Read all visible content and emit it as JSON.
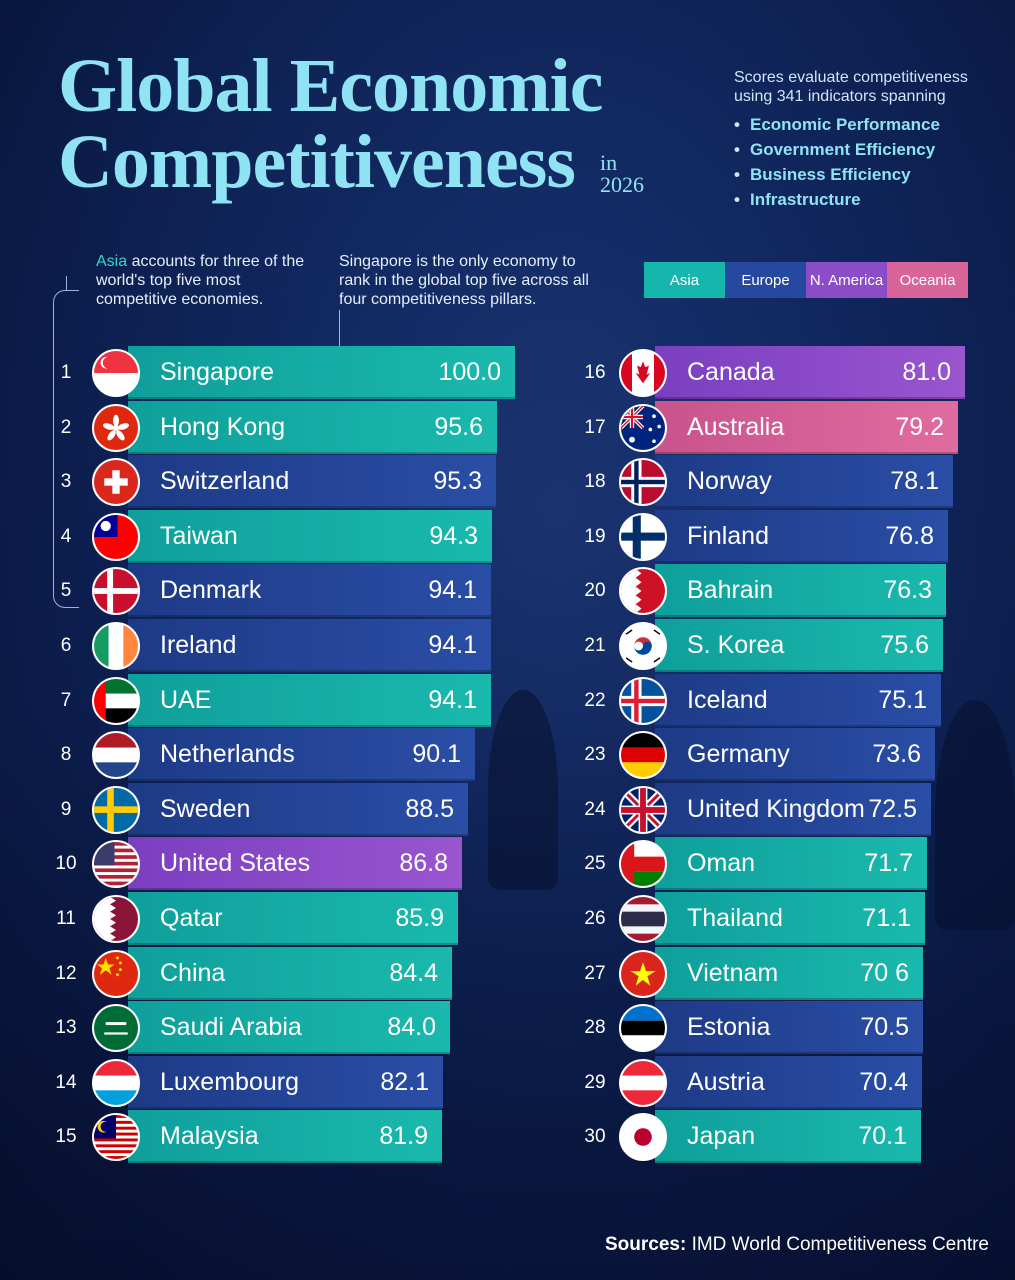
{
  "header": {
    "title_line1": "Global Economic",
    "title_line2": "Competitiveness",
    "title_suffix_1": "in",
    "title_suffix_2": "2026"
  },
  "intro": {
    "text": "Scores evaluate competitiveness using 341 indicators spanning",
    "pillars": [
      "Economic Performance",
      "Government Efficiency",
      "Business Efficiency",
      "Infrastructure"
    ]
  },
  "notes": {
    "asia_highlight": "Asia",
    "asia_rest": " accounts for three of the world's top five most competitive economies.",
    "singapore": "Singapore is the only economy to rank in the global top five across all four competitiveness pillars."
  },
  "legend": [
    {
      "label": "Asia",
      "color": "#17b6ac"
    },
    {
      "label": "Europe",
      "color": "#26489e"
    },
    {
      "label": "N. America",
      "color": "#8b4cc7"
    },
    {
      "label": "Oceania",
      "color": "#d9649a"
    }
  ],
  "chart_data": {
    "type": "bar",
    "orientation": "horizontal",
    "title": "Global Economic Competitiveness in 2026",
    "value_unit": "score",
    "categories": [
      "Singapore",
      "Hong Kong",
      "Switzerland",
      "Taiwan",
      "Denmark",
      "Ireland",
      "UAE",
      "Netherlands",
      "Sweden",
      "United States",
      "Qatar",
      "China",
      "Saudi Arabia",
      "Luxembourg",
      "Malaysia",
      "Canada",
      "Australia",
      "Norway",
      "Finland",
      "Bahrain",
      "S. Korea",
      "Iceland",
      "Germany",
      "United Kingdom",
      "Oman",
      "Thailand",
      "Vietnam",
      "Estonia",
      "Austria",
      "Japan"
    ],
    "ranks": [
      1,
      2,
      3,
      4,
      5,
      6,
      7,
      8,
      9,
      10,
      11,
      12,
      13,
      14,
      15,
      16,
      17,
      18,
      19,
      20,
      21,
      22,
      23,
      24,
      25,
      26,
      27,
      28,
      29,
      30
    ],
    "values": [
      100.0,
      95.6,
      95.3,
      94.3,
      94.1,
      94.1,
      94.1,
      90.1,
      88.5,
      86.8,
      85.9,
      84.4,
      84.0,
      82.1,
      81.9,
      81.0,
      79.2,
      78.1,
      76.8,
      76.3,
      75.6,
      75.1,
      73.6,
      72.5,
      71.7,
      71.1,
      70.6,
      70.5,
      70.4,
      70.1
    ],
    "value_labels": [
      "100.0",
      "95.6",
      "95.3",
      "94.3",
      "94.1",
      "94.1",
      "94.1",
      "90.1",
      "88.5",
      "86.8",
      "85.9",
      "84.4",
      "84.0",
      "82.1",
      "81.9",
      "81.0",
      "79.2",
      "78.1",
      "76.8",
      "76.3",
      "75.6",
      "75.1",
      "73.6",
      "72.5",
      "71.7",
      "71.1",
      "70 6",
      "70.5",
      "70.4",
      "70.1"
    ],
    "regions": [
      "Asia",
      "Asia",
      "Europe",
      "Asia",
      "Europe",
      "Europe",
      "Asia",
      "Europe",
      "Europe",
      "N. America",
      "Asia",
      "Asia",
      "Asia",
      "Europe",
      "Asia",
      "N. America",
      "Oceania",
      "Europe",
      "Europe",
      "Asia",
      "Asia",
      "Europe",
      "Europe",
      "Europe",
      "Asia",
      "Asia",
      "Asia",
      "Europe",
      "Europe",
      "Asia"
    ]
  },
  "flags": [
    "singapore-flag",
    "hong-kong-flag",
    "switzerland-flag",
    "taiwan-flag",
    "denmark-flag",
    "ireland-flag",
    "uae-flag",
    "netherlands-flag",
    "sweden-flag",
    "united-states-flag",
    "qatar-flag",
    "china-flag",
    "saudi-arabia-flag",
    "luxembourg-flag",
    "malaysia-flag",
    "canada-flag",
    "australia-flag",
    "norway-flag",
    "finland-flag",
    "bahrain-flag",
    "south-korea-flag",
    "iceland-flag",
    "germany-flag",
    "united-kingdom-flag",
    "oman-flag",
    "thailand-flag",
    "vietnam-flag",
    "estonia-flag",
    "austria-flag",
    "japan-flag"
  ],
  "source": {
    "label": "Sources:",
    "text": " IMD World Competitiveness Centre"
  }
}
